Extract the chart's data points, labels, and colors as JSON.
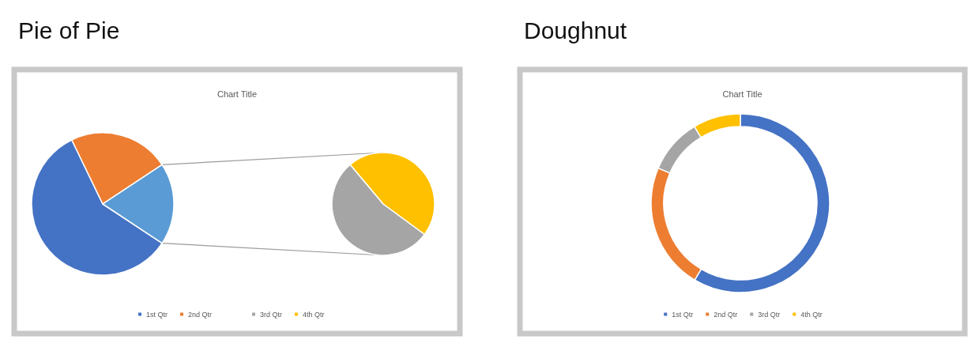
{
  "chart_data": [
    {
      "type": "pie",
      "title": "Pie of Pie",
      "subtitle": "Chart Title",
      "legend": "bottom",
      "categories": [
        "1st Qtr",
        "2nd Qtr",
        null
      ],
      "values": [
        58.6,
        22.9,
        18.6
      ],
      "colors": [
        "#4472c4",
        "#ed7d31",
        "#5b9bd5"
      ]
    },
    {
      "type": "pie",
      "legend": "bottom",
      "categories": [
        "3rd Qtr",
        "4th Qtr"
      ],
      "values": [
        53.8,
        46.2
      ],
      "colors": [
        "#a5a5a5",
        "#ffc000"
      ]
    },
    {
      "type": "donut",
      "title": "Doughnut",
      "subtitle": "Chart Title",
      "legend": "bottom",
      "categories": [
        "1st Qtr",
        "2nd Qtr",
        "3rd Qtr",
        "4th Qtr"
      ],
      "values": [
        58.6,
        22.9,
        10,
        8.6
      ],
      "colors": [
        "#4472c4",
        "#ed7d31",
        "#a5a5a5",
        "#ffc000"
      ]
    }
  ]
}
